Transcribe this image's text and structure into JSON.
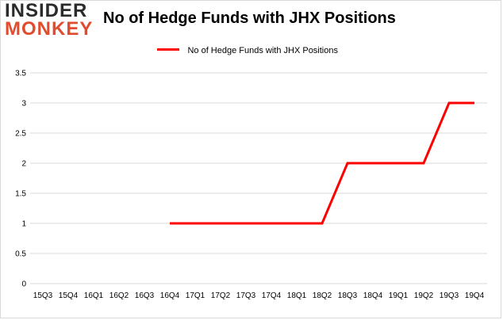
{
  "logo": {
    "top": "INSIDER",
    "bottom": "MONKEY"
  },
  "colors": {
    "series": "#ff0000",
    "grid": "#d9d9d9",
    "logo_accent": "#e14b2e"
  },
  "chart_data": {
    "type": "line",
    "title": "No of Hedge Funds with JHX Positions",
    "legend": "top-center",
    "grid": true,
    "categories": [
      "15Q3",
      "15Q4",
      "16Q1",
      "16Q2",
      "16Q3",
      "16Q4",
      "17Q1",
      "17Q2",
      "17Q3",
      "17Q4",
      "18Q1",
      "18Q2",
      "18Q3",
      "18Q4",
      "19Q1",
      "19Q2",
      "19Q3",
      "19Q4"
    ],
    "y_ticks": [
      "0",
      "0.5",
      "1",
      "1.5",
      "2",
      "2.5",
      "3",
      "3.5"
    ],
    "ylim": [
      0,
      3.5
    ],
    "series": [
      {
        "name": "No of Hedge Funds with JHX Positions",
        "values": [
          null,
          null,
          null,
          null,
          null,
          1,
          1,
          1,
          1,
          1,
          1,
          1,
          2,
          2,
          2,
          2,
          3,
          3
        ]
      }
    ]
  }
}
